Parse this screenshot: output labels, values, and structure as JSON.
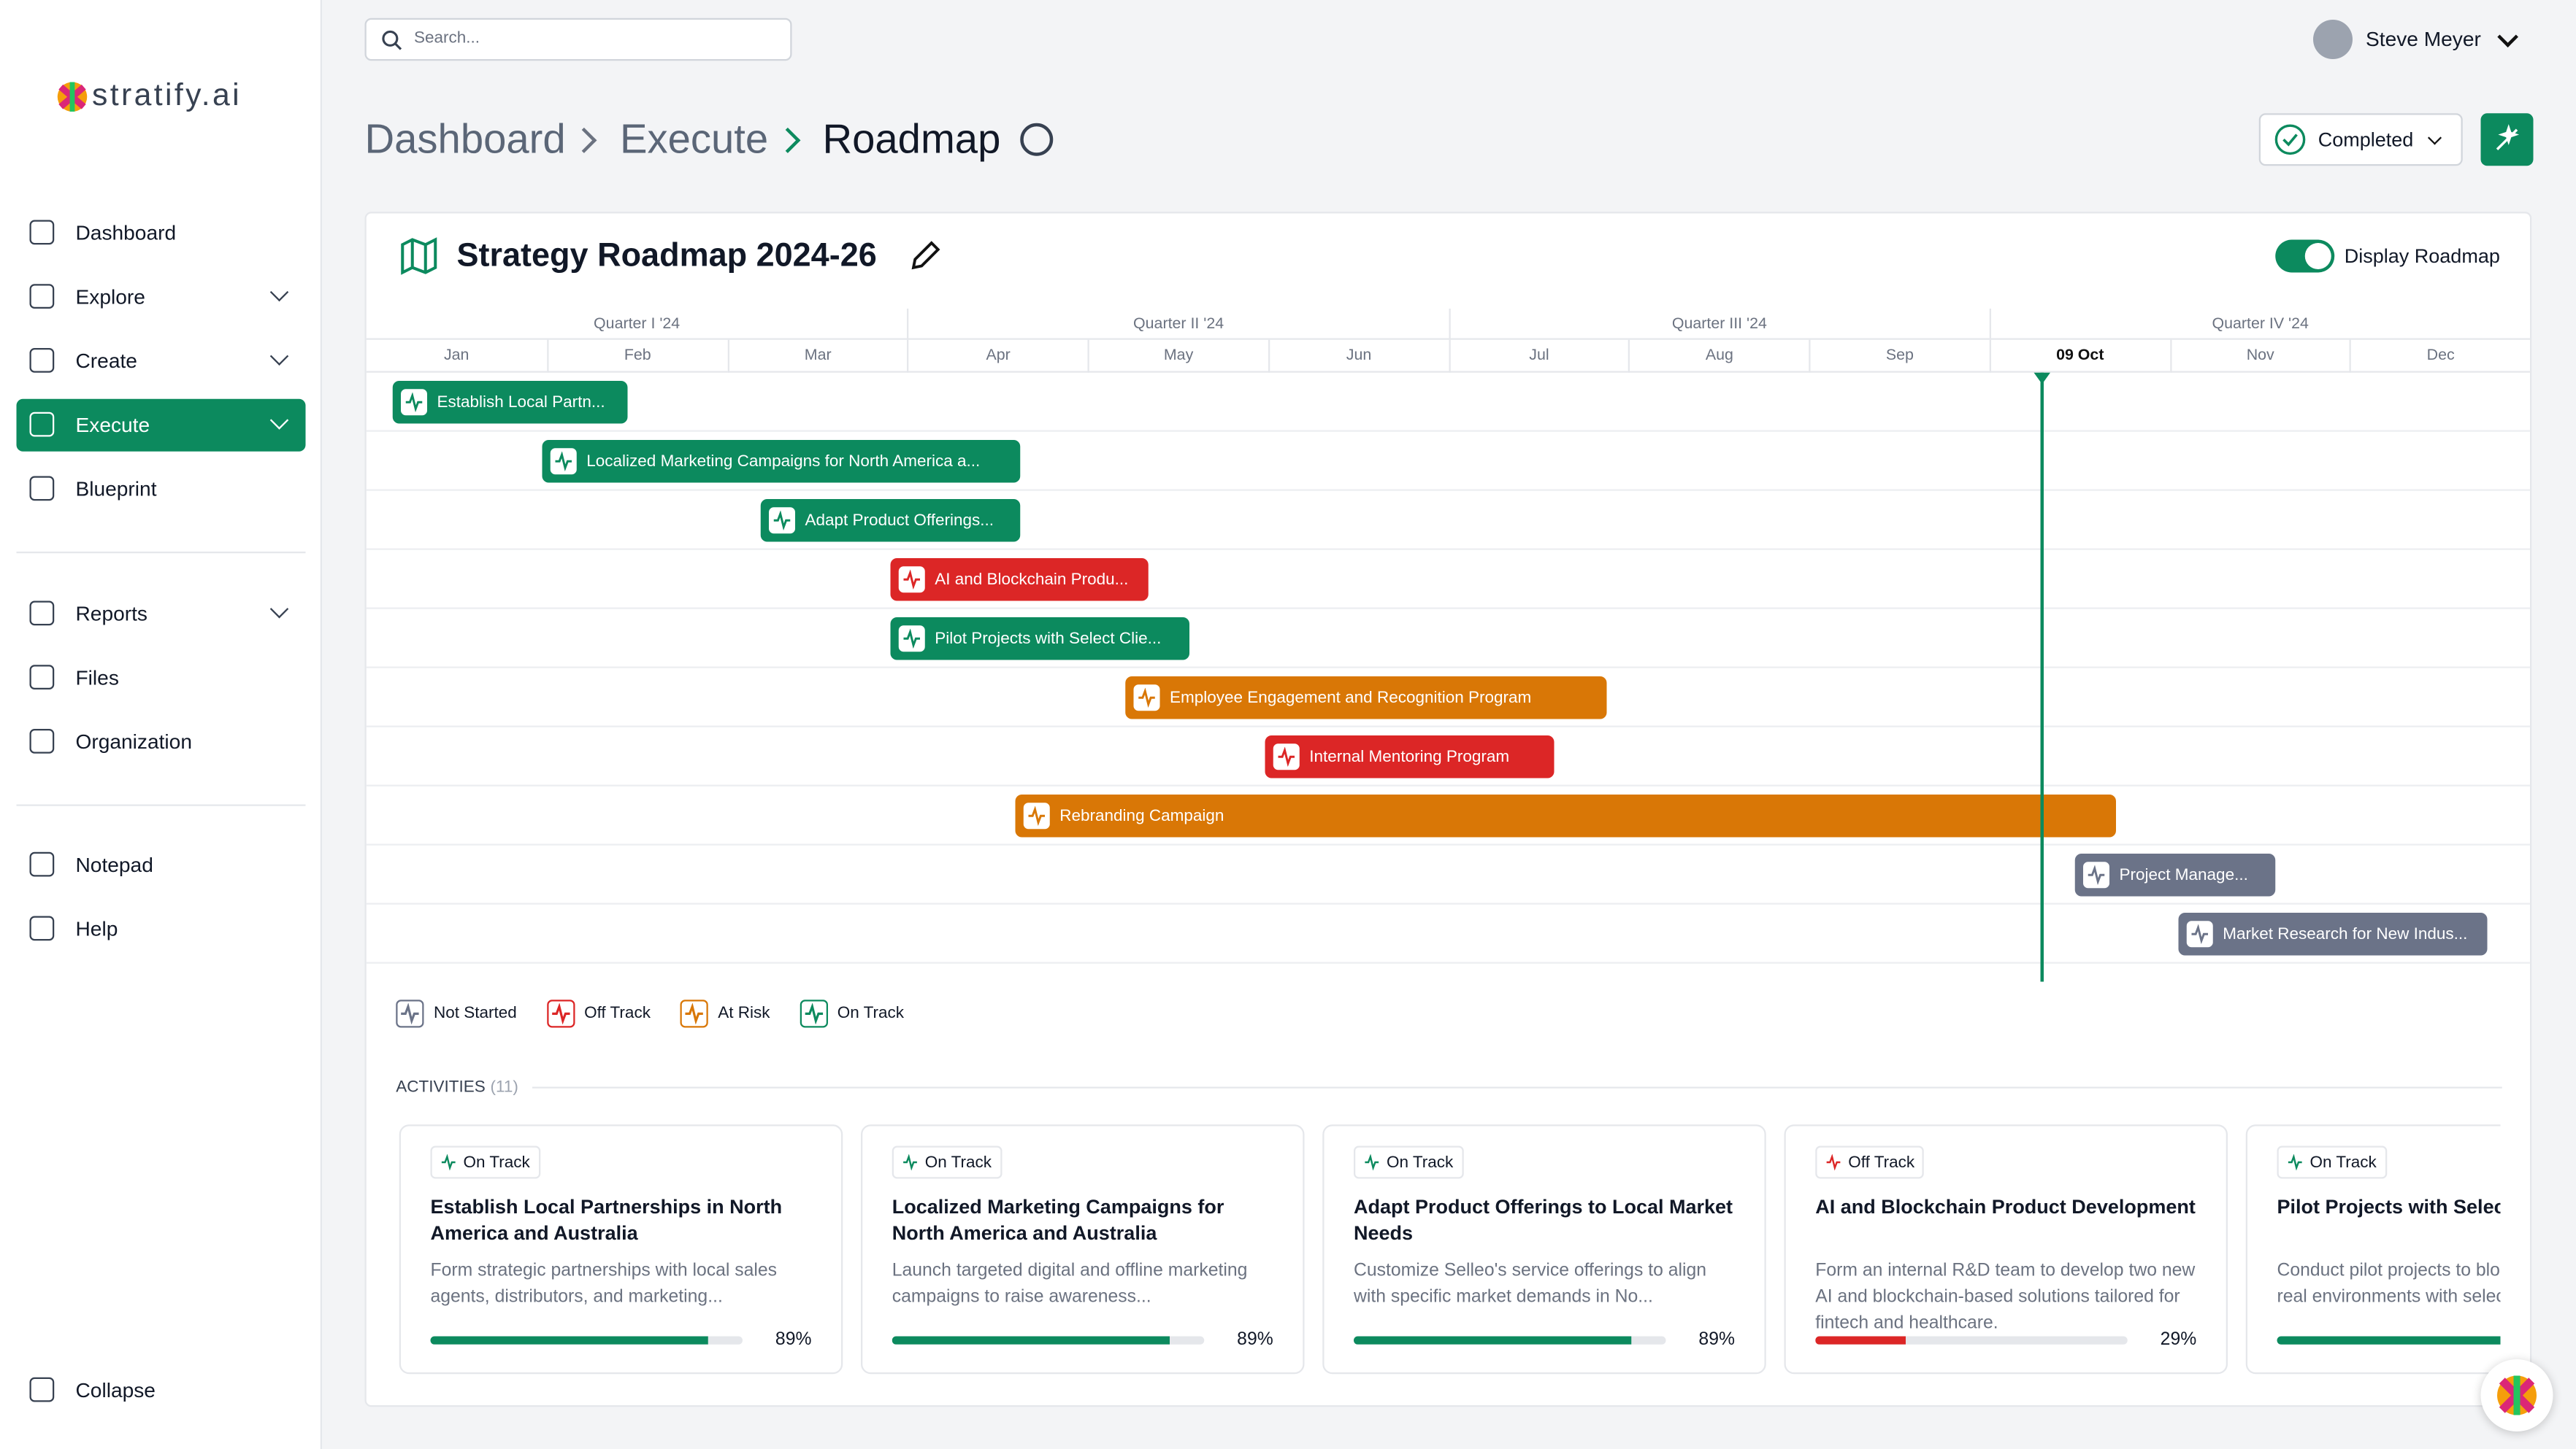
{
  "sidebar": {
    "logo": "stratify.ai",
    "nav": [
      "Dashboard",
      "Explore",
      "Create",
      "Execute",
      "Blueprint",
      "Reports",
      "Files",
      "Organization",
      "Notepad",
      "Help"
    ],
    "collapse": "Collapse"
  },
  "topbar": {
    "search_placeholder": "Search...",
    "user": "Steve Meyer"
  },
  "breadcrumb": [
    "Dashboard",
    "Execute",
    "Roadmap"
  ],
  "status_button": "Completed",
  "roadmap": {
    "title": "Strategy Roadmap 2024-26",
    "toggle_label": "Display Roadmap",
    "quarters": [
      "Quarter I '24",
      "Quarter II '24",
      "Quarter III '24",
      "Quarter IV '24"
    ],
    "months": [
      "Jan",
      "Feb",
      "Mar",
      "Apr",
      "May",
      "Jun",
      "Jul",
      "Aug",
      "Sep",
      "09 Oct",
      "Nov",
      "Dec"
    ],
    "tasks": [
      {
        "label": "Establish Local Partn...",
        "status": "On Track"
      },
      {
        "label": "Localized Marketing Campaigns for North America a...",
        "status": "On Track"
      },
      {
        "label": "Adapt Product Offerings...",
        "status": "On Track"
      },
      {
        "label": "AI and Blockchain Produ...",
        "status": "Off Track"
      },
      {
        "label": "Pilot Projects with Select Clie...",
        "status": "On Track"
      },
      {
        "label": "Employee Engagement and Recognition Program",
        "status": "At Risk"
      },
      {
        "label": "Internal Mentoring Program",
        "status": "Off Track"
      },
      {
        "label": "Rebranding Campaign",
        "status": "At Risk"
      },
      {
        "label": "Project Manage...",
        "status": "Not Started"
      },
      {
        "label": "Market Research for New Indus...",
        "status": "Not Started"
      }
    ],
    "legend": [
      "Not Started",
      "Off Track",
      "At Risk",
      "On Track"
    ]
  },
  "activities": {
    "label": "ACTIVITIES",
    "count": "(11)",
    "cards": [
      {
        "status": "On Track",
        "title": "Establish Local Partnerships in North America and Australia",
        "description": "Form strategic partnerships with local sales agents, distributors, and marketing...",
        "progress": "89%"
      },
      {
        "status": "On Track",
        "title": "Localized Marketing Campaigns for North America and Australia",
        "description": "Launch targeted digital and offline marketing campaigns to raise awareness...",
        "progress": "89%"
      },
      {
        "status": "On Track",
        "title": "Adapt Product Offerings to Local Market Needs",
        "description": "Customize Selleo's service offerings to align with specific market demands in No...",
        "progress": "89%"
      },
      {
        "status": "Off Track",
        "title": "AI and Blockchain Product Development",
        "description": "Form an internal R&D team to develop two new AI and blockchain-based solutions tailored for fintech and healthcare.",
        "progress": "29%"
      },
      {
        "status": "On Track",
        "title": "Pilot Projects with Select Clients",
        "description": "Conduct pilot projects to blockchain solutions in real environments with select clients."
      }
    ]
  }
}
